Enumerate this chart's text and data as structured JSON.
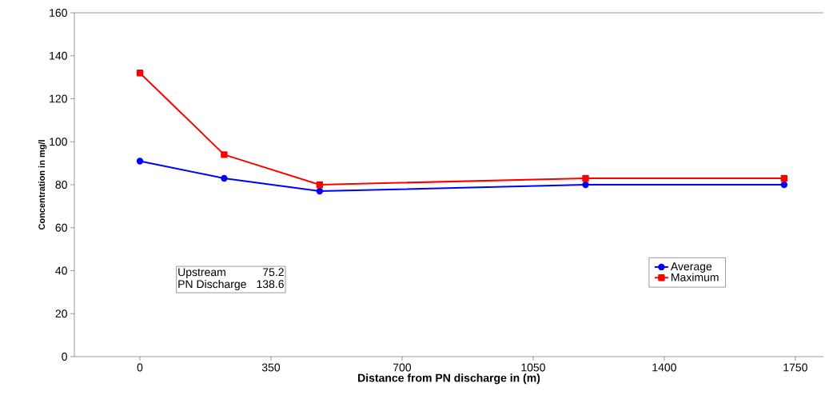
{
  "chart_data": {
    "type": "line",
    "xlabel": "Distance from PN discharge in (m)",
    "ylabel": "Concentration in mg/l",
    "x": [
      0,
      225,
      480,
      1190,
      1720
    ],
    "series": [
      {
        "name": "Average",
        "color": "#0000ff",
        "marker": "circle",
        "values": [
          91,
          83,
          77,
          80,
          80
        ]
      },
      {
        "name": "Maximum",
        "color": "#ff0000",
        "marker": "square",
        "values": [
          132,
          94,
          80,
          83,
          83
        ]
      }
    ],
    "xlim": [
      -175,
      1825
    ],
    "xticks": [
      0,
      350,
      700,
      1050,
      1400,
      1750
    ],
    "ylim": [
      0,
      160
    ],
    "yticks": [
      0,
      20,
      40,
      60,
      80,
      100,
      120,
      140,
      160
    ],
    "grid": false,
    "legend": "bottom right",
    "line_style": "solid",
    "annotations": [
      "Upstream",
      "75.2",
      "PN Discharge",
      "138.6"
    ]
  }
}
